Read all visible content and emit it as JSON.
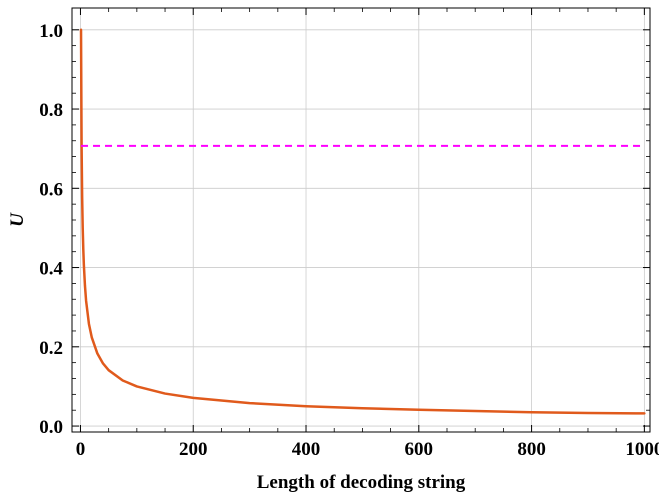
{
  "chart_data": {
    "type": "line",
    "title": "",
    "xlabel": "Length of decoding string",
    "ylabel": "U",
    "xlim": [
      -15,
      1010
    ],
    "ylim": [
      -0.015,
      1.055
    ],
    "grid": true,
    "x_ticks": [
      {
        "value": 0,
        "label": "0"
      },
      {
        "value": 200,
        "label": "200"
      },
      {
        "value": 400,
        "label": "400"
      },
      {
        "value": 600,
        "label": "600"
      },
      {
        "value": 800,
        "label": "800"
      },
      {
        "value": 1000,
        "label": "1000"
      }
    ],
    "y_ticks": [
      {
        "value": 0.0,
        "label": "0.0"
      },
      {
        "value": 0.2,
        "label": "0.2"
      },
      {
        "value": 0.4,
        "label": "0.4"
      },
      {
        "value": 0.6,
        "label": "0.6"
      },
      {
        "value": 0.8,
        "label": "0.8"
      },
      {
        "value": 1.0,
        "label": "1.0"
      }
    ],
    "series": [
      {
        "color": "#e05a1c",
        "style": "solid",
        "x": [
          1,
          2,
          3,
          4,
          5,
          6,
          8,
          10,
          15,
          20,
          30,
          40,
          50,
          75,
          100,
          150,
          200,
          300,
          400,
          500,
          600,
          700,
          800,
          900,
          1000
        ],
        "y": [
          1.0,
          0.707,
          0.577,
          0.5,
          0.447,
          0.408,
          0.354,
          0.316,
          0.258,
          0.224,
          0.183,
          0.158,
          0.141,
          0.115,
          0.1,
          0.082,
          0.071,
          0.058,
          0.05,
          0.045,
          0.041,
          0.038,
          0.035,
          0.033,
          0.032
        ]
      },
      {
        "color": "#ff00ff",
        "style": "dashed",
        "x": [
          1,
          1000
        ],
        "y": [
          0.707,
          0.707
        ]
      }
    ]
  }
}
